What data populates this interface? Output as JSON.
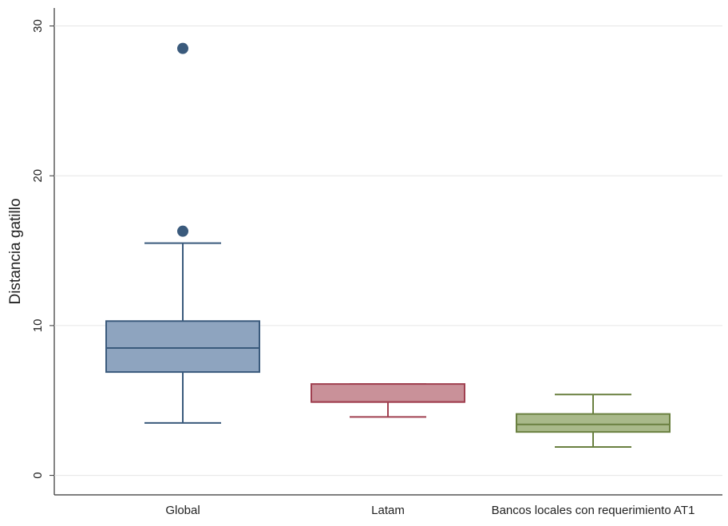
{
  "chart_data": {
    "type": "box",
    "y_label": "Distancia gatillo",
    "categories": [
      "Global",
      "Latam",
      "Bancos locales con requerimiento AT1"
    ],
    "boxes": [
      {
        "whisker_low": 3.5,
        "q1": 6.9,
        "median": 8.5,
        "q3": 10.3,
        "whisker_high": 15.5,
        "outliers": [
          16.3,
          28.5
        ],
        "color": "#8ea4bf",
        "edge_color": "#3a5a7c"
      },
      {
        "whisker_low": 3.9,
        "q1": 4.9,
        "median": 4.9,
        "q3": 6.1,
        "whisker_high": 6.1,
        "outliers": [],
        "color": "#c99199",
        "edge_color": "#a04050"
      },
      {
        "whisker_low": 1.9,
        "q1": 2.9,
        "median": 3.4,
        "q3": 4.1,
        "whisker_high": 5.4,
        "outliers": [],
        "color": "#a9b98a",
        "edge_color": "#6a8040"
      }
    ],
    "ylim": [
      -1.3,
      31.2
    ],
    "yticks": [
      0,
      10,
      20,
      30
    ],
    "grid": true
  }
}
